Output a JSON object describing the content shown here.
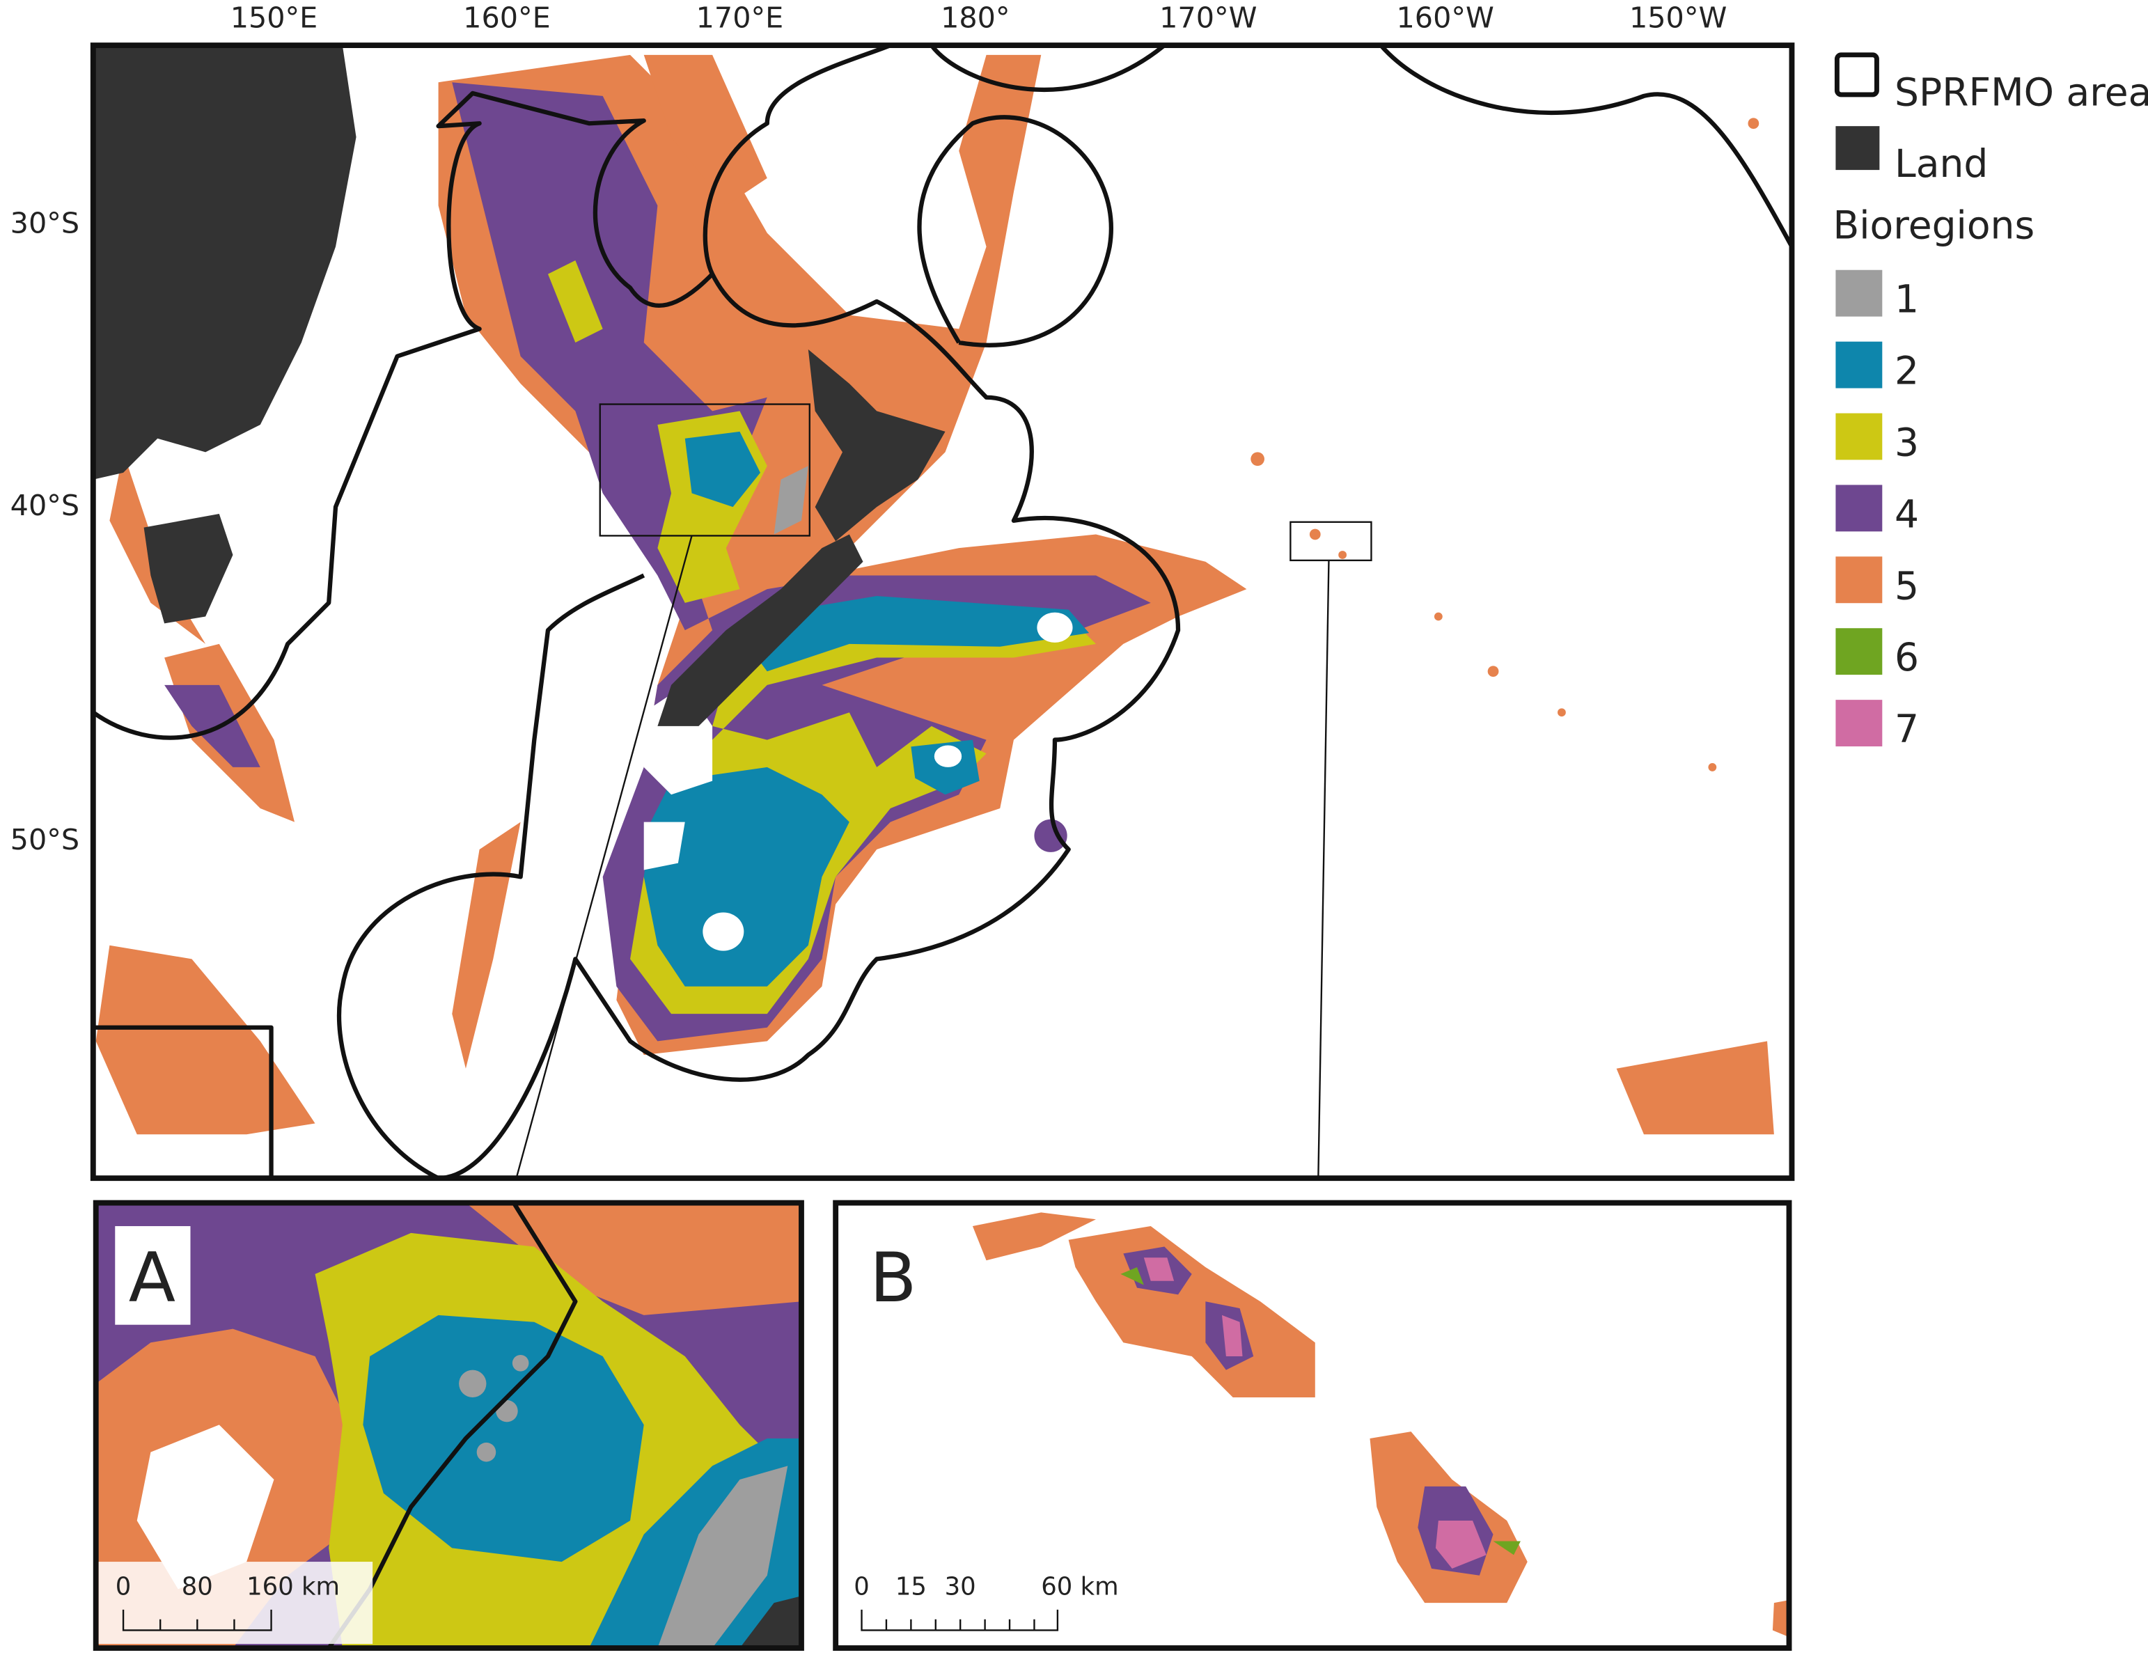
{
  "map": {
    "lon_labels": [
      "150°E",
      "160°E",
      "170°E",
      "180°",
      "170°W",
      "160°W",
      "150°W"
    ],
    "lat_labels": [
      "30°S",
      "40°S",
      "50°S"
    ]
  },
  "legend": {
    "items": [
      {
        "label": "SPRFMO area"
      },
      {
        "label": "Land"
      }
    ],
    "title": "Bioregions",
    "classes": [
      {
        "label": "1",
        "color": "#9e9e9e"
      },
      {
        "label": "2",
        "color": "#0e86ac"
      },
      {
        "label": "3",
        "color": "#cdc814"
      },
      {
        "label": "4",
        "color": "#6e4790"
      },
      {
        "label": "5",
        "color": "#e6824d"
      },
      {
        "label": "6",
        "color": "#6fa521"
      },
      {
        "label": "7",
        "color": "#d06ca3"
      }
    ]
  },
  "insets": [
    {
      "label": "A",
      "scale": [
        "0",
        "80",
        "160 km"
      ]
    },
    {
      "label": "B",
      "scale": [
        "0",
        "15",
        "30",
        "60 km"
      ]
    }
  ]
}
